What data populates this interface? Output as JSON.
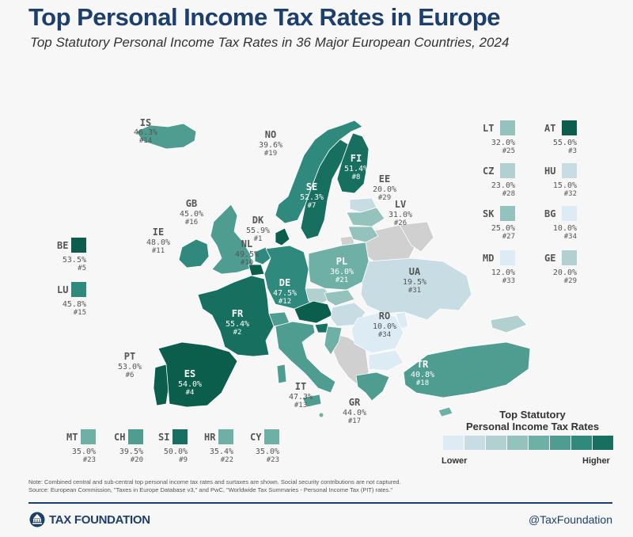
{
  "title": "Top Personal Income Tax Rates in Europe",
  "subtitle": "Top Statutory Personal Income Tax Rates in 36 Major European Countries, 2024",
  "colors": {
    "c1": "#ddebf5",
    "c2": "#c8dde3",
    "c3": "#b2d0d0",
    "c4": "#94c3bd",
    "c5": "#6fb0a6",
    "c6": "#4f9c91",
    "c7": "#2f897c",
    "c8": "#17705f",
    "c9": "#0b5e4c",
    "nodata": "#d0d0d0",
    "brand": "#1c3f6e"
  },
  "map_labels": [
    {
      "id": "is",
      "code": "IS",
      "value": "46.3%",
      "rank": "#14"
    },
    {
      "id": "no",
      "code": "NO",
      "value": "39.6%",
      "rank": "#19"
    },
    {
      "id": "fi",
      "code": "FI",
      "value": "51.4%",
      "rank": "#8"
    },
    {
      "id": "se",
      "code": "SE",
      "value": "52.3%",
      "rank": "#7"
    },
    {
      "id": "ee",
      "code": "EE",
      "value": "20.0%",
      "rank": "#29"
    },
    {
      "id": "lv",
      "code": "LV",
      "value": "31.0%",
      "rank": "#26"
    },
    {
      "id": "gb",
      "code": "GB",
      "value": "45.0%",
      "rank": "#16"
    },
    {
      "id": "dk",
      "code": "DK",
      "value": "55.9%",
      "rank": "#1"
    },
    {
      "id": "ie",
      "code": "IE",
      "value": "48.0%",
      "rank": "#11"
    },
    {
      "id": "nl",
      "code": "NL",
      "value": "49.5%",
      "rank": "#10"
    },
    {
      "id": "pl",
      "code": "PL",
      "value": "36.0%",
      "rank": "#21"
    },
    {
      "id": "de",
      "code": "DE",
      "value": "47.5%",
      "rank": "#12"
    },
    {
      "id": "ua",
      "code": "UA",
      "value": "19.5%",
      "rank": "#31"
    },
    {
      "id": "fr",
      "code": "FR",
      "value": "55.4%",
      "rank": "#2"
    },
    {
      "id": "ro",
      "code": "RO",
      "value": "10.0%",
      "rank": "#34"
    },
    {
      "id": "pt",
      "code": "PT",
      "value": "53.0%",
      "rank": "#6"
    },
    {
      "id": "es",
      "code": "ES",
      "value": "54.0%",
      "rank": "#4"
    },
    {
      "id": "tr",
      "code": "TR",
      "value": "40.8%",
      "rank": "#18"
    },
    {
      "id": "it",
      "code": "IT",
      "value": "47.3%",
      "rank": "#13"
    },
    {
      "id": "gr",
      "code": "GR",
      "value": "44.0%",
      "rank": "#17"
    }
  ],
  "box_labels": [
    {
      "id": "lt",
      "code": "LT",
      "value": "32.0%",
      "rank": "#25"
    },
    {
      "id": "at",
      "code": "AT",
      "value": "55.0%",
      "rank": "#3"
    },
    {
      "id": "cz",
      "code": "CZ",
      "value": "23.0%",
      "rank": "#28"
    },
    {
      "id": "hu",
      "code": "HU",
      "value": "15.0%",
      "rank": "#32"
    },
    {
      "id": "sk",
      "code": "SK",
      "value": "25.0%",
      "rank": "#27"
    },
    {
      "id": "bg",
      "code": "BG",
      "value": "10.0%",
      "rank": "#34"
    },
    {
      "id": "md",
      "code": "MD",
      "value": "12.0%",
      "rank": "#33"
    },
    {
      "id": "ge",
      "code": "GE",
      "value": "20.0%",
      "rank": "#29"
    },
    {
      "id": "be",
      "code": "BE",
      "value": "53.5%",
      "rank": "#5"
    },
    {
      "id": "lu",
      "code": "LU",
      "value": "45.8%",
      "rank": "#15"
    },
    {
      "id": "mt",
      "code": "MT",
      "value": "35.0%",
      "rank": "#23"
    },
    {
      "id": "ch",
      "code": "CH",
      "value": "39.5%",
      "rank": "#20"
    },
    {
      "id": "si",
      "code": "SI",
      "value": "50.0%",
      "rank": "#9"
    },
    {
      "id": "hr",
      "code": "HR",
      "value": "35.4%",
      "rank": "#22"
    },
    {
      "id": "cy",
      "code": "CY",
      "value": "35.0%",
      "rank": "#23"
    }
  ],
  "legend": {
    "title_line1": "Top Statutory",
    "title_line2": "Personal Income Tax Rates",
    "lower": "Lower",
    "higher": "Higher"
  },
  "note": {
    "line1": "Note: Combined central and sub-central top personal income tax rates and surtaxes are shown. Social security contributions are not captured.",
    "line2": "Source: European Commission, \"Taxes in Europe Database v3,\" and PwC, \"Worldwide Tax Summaries - Personal Income Tax (PIT) rates.\""
  },
  "footer": {
    "brand": "TAX FOUNDATION",
    "handle": "@TaxFoundation"
  }
}
